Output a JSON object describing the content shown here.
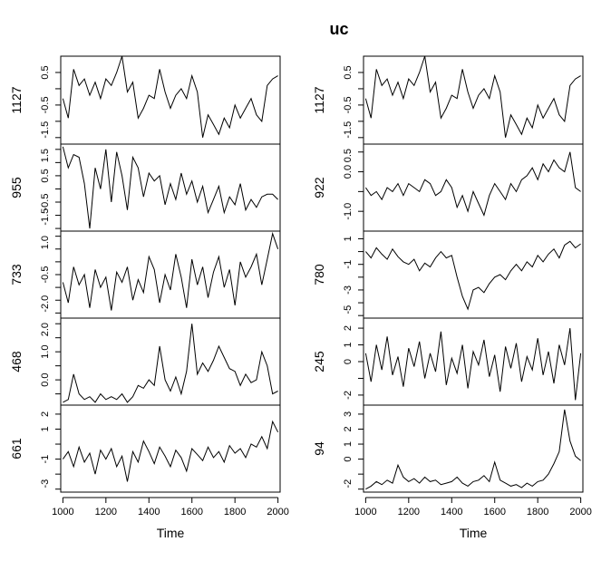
{
  "chart_data": {
    "type": "line",
    "title": "uc",
    "xlabel": "Time",
    "xlim": [
      990,
      2010
    ],
    "x_ticks": [
      1000,
      1200,
      1400,
      1600,
      1800,
      2000
    ],
    "x_tick_labels": [
      "1000",
      "1200",
      "1400",
      "1600",
      "1800",
      "2000"
    ],
    "x": [
      1000,
      1025,
      1050,
      1075,
      1100,
      1125,
      1150,
      1175,
      1200,
      1225,
      1250,
      1275,
      1300,
      1325,
      1350,
      1375,
      1400,
      1425,
      1450,
      1475,
      1500,
      1525,
      1550,
      1575,
      1600,
      1625,
      1650,
      1675,
      1700,
      1725,
      1750,
      1775,
      1800,
      1825,
      1850,
      1875,
      1900,
      1925,
      1950,
      1975,
      2000
    ],
    "columns": [
      {
        "side": "left",
        "panels": [
          {
            "name": "1127",
            "ylim": [
              -1.7,
              1.0
            ],
            "ticks": [
              -1.5,
              -1,
              -0.5,
              0,
              0.5
            ],
            "tick_labels": [
              "-1.5",
              "",
              "-0.5",
              "",
              "0.5"
            ],
            "values": [
              -0.3,
              -0.9,
              0.6,
              0.1,
              0.3,
              -0.2,
              0.2,
              -0.3,
              0.3,
              0.1,
              0.5,
              1.0,
              -0.1,
              0.2,
              -0.9,
              -0.6,
              -0.2,
              -0.3,
              0.6,
              -0.1,
              -0.6,
              -0.2,
              0.0,
              -0.3,
              0.4,
              -0.1,
              -1.5,
              -0.8,
              -1.1,
              -1.4,
              -0.9,
              -1.2,
              -0.5,
              -0.9,
              -0.6,
              -0.3,
              -0.8,
              -1.0,
              0.1,
              0.3,
              0.4
            ]
          },
          {
            "name": "955",
            "ylim": [
              -1.6,
              1.7
            ],
            "ticks": [
              -1.5,
              -1,
              -0.5,
              0,
              0.5,
              1,
              1.5
            ],
            "tick_labels": [
              "-1.5",
              "",
              "-0.5",
              "",
              "0.5",
              "",
              "1.5"
            ],
            "values": [
              1.6,
              0.8,
              1.3,
              1.2,
              0.2,
              -1.5,
              0.8,
              0.0,
              1.5,
              -0.5,
              1.4,
              0.5,
              -0.8,
              1.2,
              0.8,
              -0.3,
              0.6,
              0.3,
              0.5,
              -0.6,
              0.2,
              -0.4,
              0.6,
              -0.2,
              0.3,
              -0.5,
              0.1,
              -0.9,
              -0.4,
              0.1,
              -0.9,
              -0.3,
              -0.6,
              0.2,
              -0.8,
              -0.4,
              -0.7,
              -0.3,
              -0.2,
              -0.2,
              -0.4
            ]
          },
          {
            "name": "733",
            "ylim": [
              -2.2,
              1.2
            ],
            "ticks": [
              -2.0,
              -1.5,
              -1.0,
              -0.5,
              0,
              0.5,
              1.0
            ],
            "tick_labels": [
              "-2.0",
              "",
              "",
              "-0.5",
              "",
              "",
              "1.0"
            ],
            "values": [
              -0.8,
              -1.6,
              -0.2,
              -0.9,
              -0.5,
              -1.8,
              -0.3,
              -1.0,
              -0.6,
              -1.9,
              -0.4,
              -0.8,
              -0.2,
              -1.5,
              -0.7,
              -1.2,
              0.2,
              -0.3,
              -1.6,
              -0.5,
              -1.1,
              0.3,
              -0.6,
              -1.8,
              0.1,
              -0.9,
              -0.2,
              -1.4,
              -0.4,
              0.2,
              -1.0,
              -0.3,
              -1.7,
              0.0,
              -0.6,
              -0.2,
              0.3,
              -0.9,
              0.1,
              1.1,
              0.5
            ]
          },
          {
            "name": "468",
            "ylim": [
              -0.9,
              2.2
            ],
            "ticks": [
              -0.5,
              0,
              0.5,
              1.0,
              1.5,
              2.0
            ],
            "tick_labels": [
              "",
              "0.0",
              "",
              "1.0",
              "",
              "2.0"
            ],
            "values": [
              -0.8,
              -0.7,
              0.2,
              -0.5,
              -0.7,
              -0.6,
              -0.8,
              -0.5,
              -0.7,
              -0.6,
              -0.7,
              -0.5,
              -0.8,
              -0.6,
              -0.2,
              -0.3,
              0.0,
              -0.2,
              1.2,
              0.0,
              -0.4,
              0.1,
              -0.5,
              0.3,
              2.0,
              0.2,
              0.6,
              0.3,
              0.7,
              1.2,
              0.8,
              0.4,
              0.3,
              -0.2,
              0.2,
              -0.1,
              0.0,
              1.0,
              0.5,
              -0.5,
              -0.4
            ]
          },
          {
            "name": "661",
            "ylim": [
              -3.2,
              2.6
            ],
            "ticks": [
              -3,
              -2,
              -1,
              0,
              1,
              2
            ],
            "tick_labels": [
              "-3",
              "",
              "-1",
              "",
              "1",
              "2"
            ],
            "values": [
              -1.0,
              -0.5,
              -1.5,
              -0.2,
              -1.2,
              -0.6,
              -2.0,
              -0.4,
              -1.0,
              -0.3,
              -1.5,
              -0.8,
              -2.5,
              -0.5,
              -1.2,
              0.2,
              -0.5,
              -1.3,
              -0.2,
              -0.8,
              -1.5,
              -0.4,
              -0.9,
              -1.8,
              -0.3,
              -0.7,
              -1.1,
              -0.2,
              -0.9,
              -0.5,
              -1.2,
              -0.1,
              -0.6,
              -0.3,
              -0.9,
              0.0,
              -0.2,
              0.5,
              -0.3,
              1.5,
              0.8
            ]
          }
        ]
      },
      {
        "side": "right",
        "panels": [
          {
            "name": "1127",
            "ylim": [
              -1.7,
              1.0
            ],
            "ticks": [
              -1.5,
              -1,
              -0.5,
              0,
              0.5
            ],
            "tick_labels": [
              "-1.5",
              "",
              "-0.5",
              "",
              "0.5"
            ],
            "values": [
              -0.3,
              -0.9,
              0.6,
              0.1,
              0.3,
              -0.2,
              0.2,
              -0.3,
              0.3,
              0.1,
              0.5,
              1.0,
              -0.1,
              0.2,
              -0.9,
              -0.6,
              -0.2,
              -0.3,
              0.6,
              -0.1,
              -0.6,
              -0.2,
              0.0,
              -0.3,
              0.4,
              -0.1,
              -1.5,
              -0.8,
              -1.1,
              -1.4,
              -0.9,
              -1.2,
              -0.5,
              -0.9,
              -0.6,
              -0.3,
              -0.8,
              -1.0,
              0.1,
              0.3,
              0.4
            ]
          },
          {
            "name": "922",
            "ylim": [
              -1.5,
              0.7
            ],
            "ticks": [
              -1.0,
              -0.5,
              0.0,
              0.5
            ],
            "tick_labels": [
              "-1.0",
              "",
              "0.0",
              "0.5"
            ],
            "values": [
              -0.4,
              -0.6,
              -0.5,
              -0.7,
              -0.4,
              -0.5,
              -0.3,
              -0.6,
              -0.3,
              -0.4,
              -0.5,
              -0.2,
              -0.3,
              -0.6,
              -0.5,
              -0.2,
              -0.4,
              -0.9,
              -0.6,
              -1.0,
              -0.5,
              -0.8,
              -1.1,
              -0.6,
              -0.3,
              -0.5,
              -0.7,
              -0.3,
              -0.5,
              -0.2,
              -0.1,
              0.1,
              -0.2,
              0.2,
              0.0,
              0.3,
              0.1,
              0.0,
              0.5,
              -0.4,
              -0.5
            ]
          },
          {
            "name": "780",
            "ylim": [
              -5.2,
              1.6
            ],
            "ticks": [
              -5,
              -4,
              -3,
              -2,
              -1,
              0,
              1
            ],
            "tick_labels": [
              "-5",
              "",
              "-3",
              "",
              "-1",
              "",
              "1"
            ],
            "values": [
              0.0,
              -0.5,
              0.3,
              -0.2,
              -0.6,
              0.2,
              -0.4,
              -0.8,
              -1.0,
              -0.6,
              -1.5,
              -0.9,
              -1.2,
              -0.5,
              0.0,
              -0.5,
              -0.3,
              -2.0,
              -3.5,
              -4.5,
              -3.0,
              -2.8,
              -3.2,
              -2.5,
              -2.0,
              -1.8,
              -2.2,
              -1.5,
              -1.0,
              -1.5,
              -0.8,
              -1.2,
              -0.3,
              -0.8,
              -0.2,
              0.2,
              -0.5,
              0.5,
              0.8,
              0.3,
              0.6
            ]
          },
          {
            "name": "245",
            "ylim": [
              -2.6,
              2.6
            ],
            "ticks": [
              -2,
              -1,
              0,
              1,
              2
            ],
            "tick_labels": [
              "-2",
              "",
              "0",
              "1",
              "2"
            ],
            "values": [
              0.5,
              -1.2,
              1.0,
              -0.5,
              1.5,
              -0.8,
              0.3,
              -1.5,
              0.8,
              -0.3,
              1.2,
              -1.0,
              0.5,
              -0.6,
              1.8,
              -1.4,
              0.2,
              -0.7,
              1.0,
              -1.6,
              0.6,
              -0.2,
              1.3,
              -0.9,
              0.4,
              -1.8,
              0.9,
              -0.4,
              1.1,
              -1.2,
              0.3,
              -0.5,
              1.4,
              -0.8,
              0.6,
              -1.3,
              1.0,
              -0.2,
              2.0,
              -2.3,
              0.5
            ]
          },
          {
            "name": "94",
            "ylim": [
              -2.2,
              3.6
            ],
            "ticks": [
              -2,
              -1,
              0,
              1,
              2,
              3
            ],
            "tick_labels": [
              "-2",
              "",
              "0",
              "1",
              "2",
              "3"
            ],
            "values": [
              -2.0,
              -1.8,
              -1.5,
              -1.7,
              -1.4,
              -1.6,
              -0.4,
              -1.2,
              -1.5,
              -1.3,
              -1.6,
              -1.2,
              -1.5,
              -1.4,
              -1.7,
              -1.6,
              -1.5,
              -1.2,
              -1.6,
              -1.8,
              -1.5,
              -1.4,
              -1.1,
              -1.5,
              -0.2,
              -1.4,
              -1.6,
              -1.8,
              -1.7,
              -1.9,
              -1.6,
              -1.8,
              -1.5,
              -1.4,
              -1.0,
              -0.3,
              0.5,
              3.3,
              1.2,
              0.2,
              -0.1
            ]
          }
        ]
      }
    ]
  }
}
